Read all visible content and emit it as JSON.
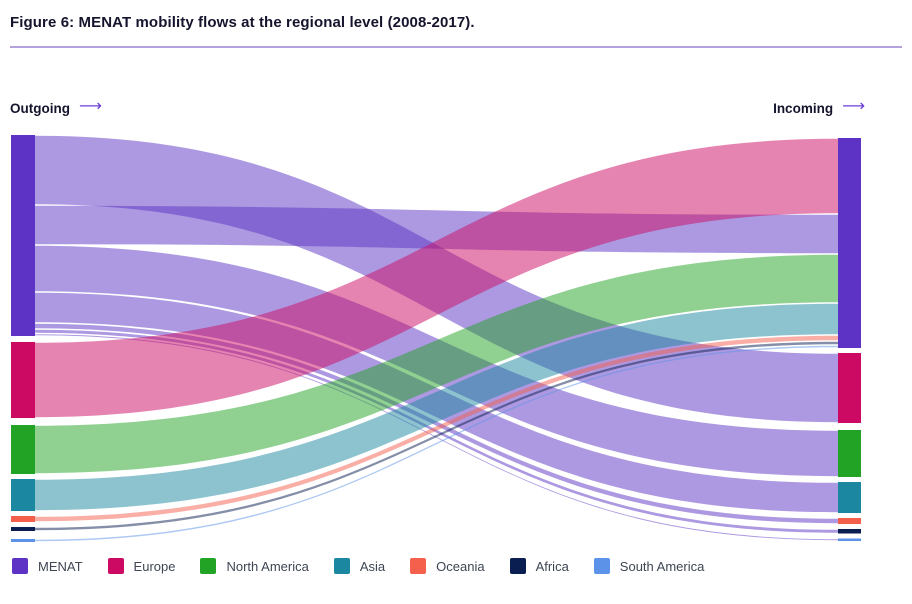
{
  "figure": {
    "title": "Figure 6: MENAT mobility flows at the regional level (2008-2017)."
  },
  "labels": {
    "outgoing": "Outgoing",
    "incoming": "Incoming",
    "arrow": "⟶"
  },
  "chart_data": {
    "type": "sankey",
    "title": "Figure 6: MENAT mobility flows at the regional level (2008-2017).",
    "left_column_label": "Outgoing",
    "right_column_label": "Incoming",
    "legend_position": "bottom",
    "value_units": "relative flow magnitude (no numeric labels shown in figure; values estimated from ribbon thickness)",
    "nodes": [
      {
        "id": "menat",
        "label": "MENAT",
        "color": "#5c33c4"
      },
      {
        "id": "europe",
        "label": "Europe",
        "color": "#cd0a63"
      },
      {
        "id": "north_america",
        "label": "North America",
        "color": "#22a326"
      },
      {
        "id": "asia",
        "label": "Asia",
        "color": "#1b87a0"
      },
      {
        "id": "oceania",
        "label": "Oceania",
        "color": "#f5604d"
      },
      {
        "id": "africa",
        "label": "Africa",
        "color": "#0a1e52"
      },
      {
        "id": "south_america",
        "label": "South America",
        "color": "#5c93e8"
      }
    ],
    "links": [
      {
        "source": "menat",
        "target": "europe",
        "value": 70
      },
      {
        "source": "menat",
        "target": "menat",
        "value": 40
      },
      {
        "source": "menat",
        "target": "north_america",
        "value": 47
      },
      {
        "source": "menat",
        "target": "asia",
        "value": 31
      },
      {
        "source": "menat",
        "target": "oceania",
        "value": 6
      },
      {
        "source": "menat",
        "target": "africa",
        "value": 4.5
      },
      {
        "source": "menat",
        "target": "south_america",
        "value": 2.5
      },
      {
        "source": "europe",
        "target": "menat",
        "value": 76
      },
      {
        "source": "north_america",
        "target": "menat",
        "value": 49
      },
      {
        "source": "asia",
        "target": "menat",
        "value": 32
      },
      {
        "source": "oceania",
        "target": "menat",
        "value": 6
      },
      {
        "source": "africa",
        "target": "menat",
        "value": 4
      },
      {
        "source": "south_america",
        "target": "menat",
        "value": 3
      }
    ]
  }
}
